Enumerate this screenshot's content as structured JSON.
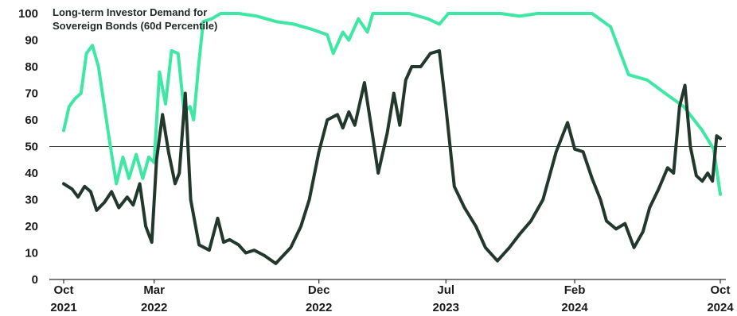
{
  "chart_data": {
    "type": "line",
    "title_lines": [
      "Long-term Investor Demand for",
      "Sovereign Bonds (60d Percentile)"
    ],
    "xlabel": "",
    "ylabel": "",
    "ylim": [
      0,
      100
    ],
    "yticks": [
      0,
      10,
      20,
      30,
      40,
      50,
      60,
      70,
      80,
      90,
      100
    ],
    "xlim": [
      "2021-10-01",
      "2024-10-31"
    ],
    "xticks": [
      {
        "date": "2021-10-01",
        "month": "Oct",
        "year": "2021"
      },
      {
        "date": "2022-03-01",
        "month": "Mar",
        "year": "2022"
      },
      {
        "date": "2022-12-01",
        "month": "Dec",
        "year": "2022"
      },
      {
        "date": "2023-07-01",
        "month": "Jul",
        "year": "2023"
      },
      {
        "date": "2024-02-01",
        "month": "Feb",
        "year": "2024"
      },
      {
        "date": "2024-10-01",
        "month": "Oct",
        "year": "2024"
      }
    ],
    "reference_line": 50,
    "grid": false,
    "series": [
      {
        "color": "#3ee8a4",
        "points": [
          [
            "2021-10-01",
            56
          ],
          [
            "2021-10-10",
            65
          ],
          [
            "2021-10-20",
            68
          ],
          [
            "2021-10-30",
            70
          ],
          [
            "2021-11-08",
            85
          ],
          [
            "2021-11-18",
            88
          ],
          [
            "2021-11-28",
            80
          ],
          [
            "2021-12-08",
            65
          ],
          [
            "2021-12-18",
            50
          ],
          [
            "2021-12-28",
            36
          ],
          [
            "2022-01-08",
            46
          ],
          [
            "2022-01-18",
            38
          ],
          [
            "2022-01-30",
            47
          ],
          [
            "2022-02-10",
            38
          ],
          [
            "2022-02-20",
            46
          ],
          [
            "2022-03-01",
            44
          ],
          [
            "2022-03-10",
            78
          ],
          [
            "2022-03-20",
            66
          ],
          [
            "2022-03-30",
            86
          ],
          [
            "2022-04-10",
            85
          ],
          [
            "2022-04-20",
            63
          ],
          [
            "2022-04-30",
            65
          ],
          [
            "2022-05-06",
            60
          ],
          [
            "2022-05-14",
            80
          ],
          [
            "2022-05-22",
            97
          ],
          [
            "2022-06-05",
            98
          ],
          [
            "2022-06-20",
            100
          ],
          [
            "2022-07-20",
            100
          ],
          [
            "2022-08-20",
            99
          ],
          [
            "2022-09-20",
            97
          ],
          [
            "2022-10-20",
            96
          ],
          [
            "2022-11-20",
            94
          ],
          [
            "2022-12-15",
            92
          ],
          [
            "2022-12-25",
            85
          ],
          [
            "2023-01-10",
            93
          ],
          [
            "2023-01-20",
            90
          ],
          [
            "2023-02-05",
            98
          ],
          [
            "2023-02-20",
            93
          ],
          [
            "2023-03-01",
            100
          ],
          [
            "2023-04-01",
            100
          ],
          [
            "2023-05-01",
            100
          ],
          [
            "2023-06-01",
            98
          ],
          [
            "2023-06-20",
            96
          ],
          [
            "2023-07-05",
            100
          ],
          [
            "2023-08-01",
            100
          ],
          [
            "2023-09-01",
            100
          ],
          [
            "2023-10-01",
            100
          ],
          [
            "2023-11-01",
            99
          ],
          [
            "2023-12-01",
            100
          ],
          [
            "2024-01-01",
            100
          ],
          [
            "2024-02-01",
            100
          ],
          [
            "2024-03-01",
            100
          ],
          [
            "2024-04-01",
            95
          ],
          [
            "2024-05-01",
            77
          ],
          [
            "2024-06-01",
            75
          ],
          [
            "2024-07-01",
            70
          ],
          [
            "2024-08-01",
            65
          ],
          [
            "2024-09-01",
            56
          ],
          [
            "2024-09-20",
            49
          ],
          [
            "2024-10-01",
            32
          ]
        ]
      },
      {
        "color": "#22382c",
        "points": [
          [
            "2021-10-01",
            36
          ],
          [
            "2021-10-15",
            34
          ],
          [
            "2021-10-25",
            31
          ],
          [
            "2021-11-05",
            35
          ],
          [
            "2021-11-15",
            33
          ],
          [
            "2021-11-25",
            26
          ],
          [
            "2021-12-08",
            29
          ],
          [
            "2021-12-20",
            33
          ],
          [
            "2022-01-01",
            27
          ],
          [
            "2022-01-15",
            31
          ],
          [
            "2022-01-25",
            28
          ],
          [
            "2022-02-05",
            36
          ],
          [
            "2022-02-15",
            20
          ],
          [
            "2022-02-25",
            14
          ],
          [
            "2022-03-05",
            45
          ],
          [
            "2022-03-15",
            62
          ],
          [
            "2022-03-25",
            48
          ],
          [
            "2022-04-05",
            36
          ],
          [
            "2022-04-12",
            40
          ],
          [
            "2022-04-22",
            70
          ],
          [
            "2022-05-01",
            30
          ],
          [
            "2022-05-15",
            13
          ],
          [
            "2022-06-01",
            11
          ],
          [
            "2022-06-15",
            23
          ],
          [
            "2022-06-25",
            14
          ],
          [
            "2022-07-05",
            15
          ],
          [
            "2022-07-20",
            13
          ],
          [
            "2022-08-01",
            10
          ],
          [
            "2022-08-15",
            11
          ],
          [
            "2022-09-01",
            9
          ],
          [
            "2022-09-20",
            6
          ],
          [
            "2022-10-15",
            12
          ],
          [
            "2022-11-01",
            20
          ],
          [
            "2022-11-15",
            30
          ],
          [
            "2022-12-01",
            48
          ],
          [
            "2022-12-15",
            60
          ],
          [
            "2023-01-01",
            62
          ],
          [
            "2023-01-10",
            57
          ],
          [
            "2023-01-20",
            63
          ],
          [
            "2023-01-30",
            58
          ],
          [
            "2023-02-15",
            74
          ],
          [
            "2023-02-28",
            55
          ],
          [
            "2023-03-10",
            40
          ],
          [
            "2023-03-25",
            55
          ],
          [
            "2023-04-05",
            70
          ],
          [
            "2023-04-15",
            58
          ],
          [
            "2023-04-25",
            75
          ],
          [
            "2023-05-05",
            80
          ],
          [
            "2023-05-20",
            80
          ],
          [
            "2023-06-05",
            85
          ],
          [
            "2023-06-20",
            86
          ],
          [
            "2023-07-01",
            65
          ],
          [
            "2023-07-15",
            35
          ],
          [
            "2023-08-01",
            27
          ],
          [
            "2023-08-20",
            20
          ],
          [
            "2023-09-05",
            12
          ],
          [
            "2023-09-25",
            7
          ],
          [
            "2023-10-15",
            12
          ],
          [
            "2023-11-01",
            17
          ],
          [
            "2023-11-20",
            22
          ],
          [
            "2023-12-10",
            30
          ],
          [
            "2024-01-01",
            48
          ],
          [
            "2024-01-20",
            59
          ],
          [
            "2024-02-01",
            49
          ],
          [
            "2024-02-15",
            48
          ],
          [
            "2024-03-01",
            38
          ],
          [
            "2024-03-15",
            30
          ],
          [
            "2024-03-25",
            22
          ],
          [
            "2024-04-10",
            19
          ],
          [
            "2024-04-25",
            21
          ],
          [
            "2024-05-10",
            12
          ],
          [
            "2024-05-25",
            18
          ],
          [
            "2024-06-05",
            27
          ],
          [
            "2024-06-20",
            34
          ],
          [
            "2024-07-05",
            42
          ],
          [
            "2024-07-15",
            40
          ],
          [
            "2024-07-25",
            65
          ],
          [
            "2024-08-03",
            73
          ],
          [
            "2024-08-12",
            50
          ],
          [
            "2024-08-22",
            39
          ],
          [
            "2024-09-01",
            37
          ],
          [
            "2024-09-10",
            40
          ],
          [
            "2024-09-18",
            37
          ],
          [
            "2024-09-25",
            54
          ],
          [
            "2024-10-01",
            53
          ]
        ]
      }
    ]
  }
}
